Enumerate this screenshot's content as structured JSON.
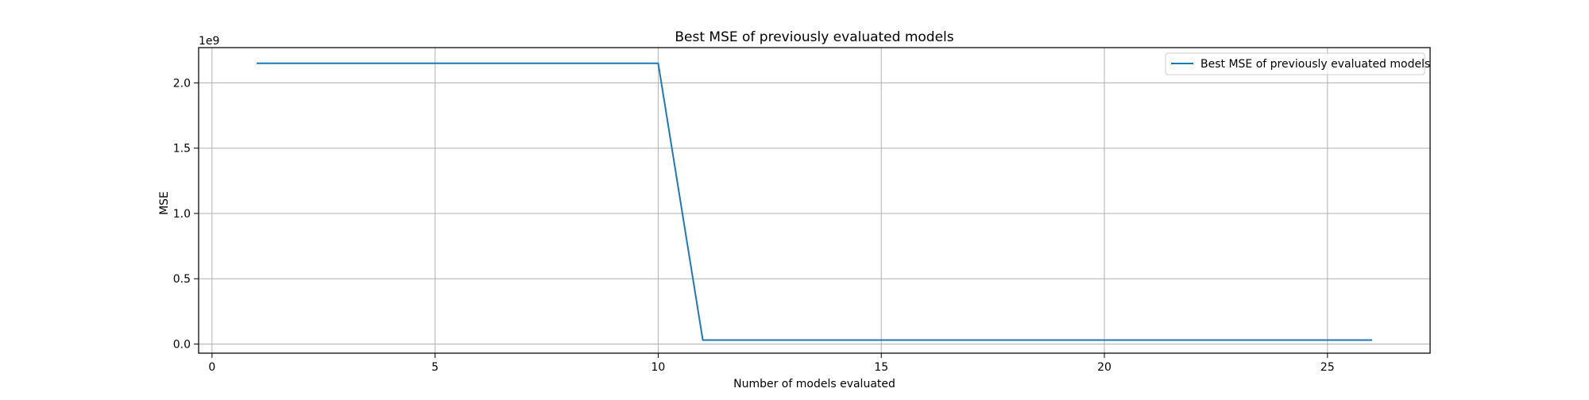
{
  "chart_data": {
    "type": "line",
    "title": "Best MSE of previously evaluated models",
    "xlabel": "Number of models evaluated",
    "ylabel": "MSE",
    "y_offset_text": "1e9",
    "xlim": [
      -0.3,
      27.3
    ],
    "ylim": [
      -0.07,
      2.27
    ],
    "x_ticks": [
      0,
      5,
      10,
      15,
      20,
      25
    ],
    "x_tick_labels": [
      "0",
      "5",
      "10",
      "15",
      "20",
      "25"
    ],
    "y_ticks": [
      0.0,
      0.5,
      1.0,
      1.5,
      2.0
    ],
    "y_tick_labels": [
      "0.0",
      "0.5",
      "1.0",
      "1.5",
      "2.0"
    ],
    "grid": true,
    "legend_position": "top-right",
    "series": [
      {
        "name": "Best MSE of previously evaluated models",
        "color": "#1f77b4",
        "x": [
          1,
          2,
          3,
          4,
          5,
          6,
          7,
          8,
          9,
          10,
          11,
          12,
          13,
          14,
          15,
          16,
          17,
          18,
          19,
          20,
          21,
          22,
          23,
          24,
          25,
          26
        ],
        "y": [
          2.15,
          2.15,
          2.15,
          2.15,
          2.15,
          2.15,
          2.15,
          2.15,
          2.15,
          2.15,
          0.03,
          0.03,
          0.03,
          0.03,
          0.03,
          0.03,
          0.03,
          0.03,
          0.03,
          0.03,
          0.03,
          0.03,
          0.03,
          0.03,
          0.03,
          0.03
        ]
      }
    ]
  }
}
